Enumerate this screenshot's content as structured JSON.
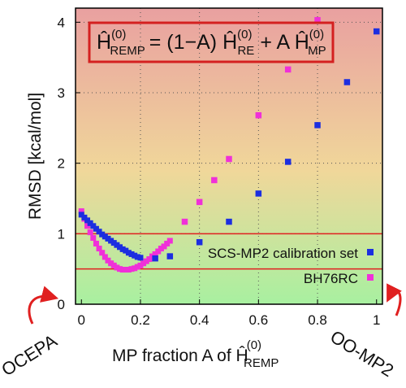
{
  "chart_data": {
    "type": "scatter",
    "xlabel": {
      "main": "MP fraction A of Ĥ",
      "sup": "(0)",
      "sub": "REMP"
    },
    "ylabel": "RMSD [kcal/mol]",
    "xlim": [
      -0.02,
      1.02
    ],
    "ylim": [
      0,
      4.2
    ],
    "x_ticks": [
      "0",
      "0.2",
      "0.4",
      "0.6",
      "0.8",
      "1"
    ],
    "y_ticks": [
      "0",
      "1",
      "2",
      "3",
      "4"
    ],
    "grid": "dotted",
    "legend_position": "bottom-right",
    "background_gradient": [
      "#e9a0a0",
      "#f0d79a",
      "#a8f0a0"
    ],
    "hlines": [
      {
        "y": 1.0,
        "color": "#e02020"
      },
      {
        "y": 0.5,
        "color": "#e02020"
      }
    ],
    "equation": {
      "lhs": "Ĥ",
      "lhs_sup": "(0)",
      "lhs_sub": "REMP",
      "mid": "= (1−A) Ĥ",
      "mid_sup": "(0)",
      "mid_sub": "RE",
      "end": "+ A Ĥ",
      "end_sup": "(0)",
      "end_sub": "MP",
      "box_color": "#d42020"
    },
    "corner_labels": {
      "left": "OCEPA",
      "right": "OO-MP2"
    },
    "series": [
      {
        "name": "SCS-MP2 calibration set",
        "color": "#1c2ee0",
        "dense": {
          "x_from": 0.0,
          "x_to": 0.2,
          "step": 0.01
        },
        "x": [
          0.0,
          0.01,
          0.02,
          0.03,
          0.04,
          0.05,
          0.06,
          0.07,
          0.08,
          0.09,
          0.1,
          0.11,
          0.12,
          0.13,
          0.14,
          0.15,
          0.16,
          0.17,
          0.18,
          0.19,
          0.2,
          0.25,
          0.3,
          0.4,
          0.5,
          0.6,
          0.7,
          0.8,
          0.9,
          1.0
        ],
        "y": [
          1.27,
          1.23,
          1.19,
          1.15,
          1.11,
          1.07,
          1.03,
          0.99,
          0.96,
          0.93,
          0.9,
          0.87,
          0.84,
          0.81,
          0.78,
          0.76,
          0.73,
          0.71,
          0.69,
          0.67,
          0.66,
          0.65,
          0.68,
          0.88,
          1.17,
          1.57,
          2.02,
          2.54,
          3.15,
          3.87
        ]
      },
      {
        "name": "BH76RC",
        "color": "#f030d8",
        "dense": {
          "x_from": 0.0,
          "x_to": 0.3,
          "step": 0.01
        },
        "x": [
          0.0,
          0.01,
          0.02,
          0.03,
          0.04,
          0.05,
          0.06,
          0.07,
          0.08,
          0.09,
          0.1,
          0.11,
          0.12,
          0.13,
          0.14,
          0.15,
          0.16,
          0.17,
          0.18,
          0.19,
          0.2,
          0.21,
          0.22,
          0.23,
          0.24,
          0.25,
          0.26,
          0.27,
          0.28,
          0.29,
          0.3,
          0.35,
          0.4,
          0.45,
          0.5,
          0.6,
          0.7,
          0.8
        ],
        "y": [
          1.32,
          1.21,
          1.11,
          1.02,
          0.94,
          0.86,
          0.79,
          0.73,
          0.67,
          0.62,
          0.58,
          0.55,
          0.52,
          0.5,
          0.49,
          0.49,
          0.49,
          0.5,
          0.51,
          0.53,
          0.55,
          0.58,
          0.61,
          0.64,
          0.68,
          0.71,
          0.75,
          0.79,
          0.82,
          0.86,
          0.9,
          1.17,
          1.45,
          1.76,
          2.06,
          2.68,
          3.33,
          4.03
        ]
      }
    ]
  }
}
